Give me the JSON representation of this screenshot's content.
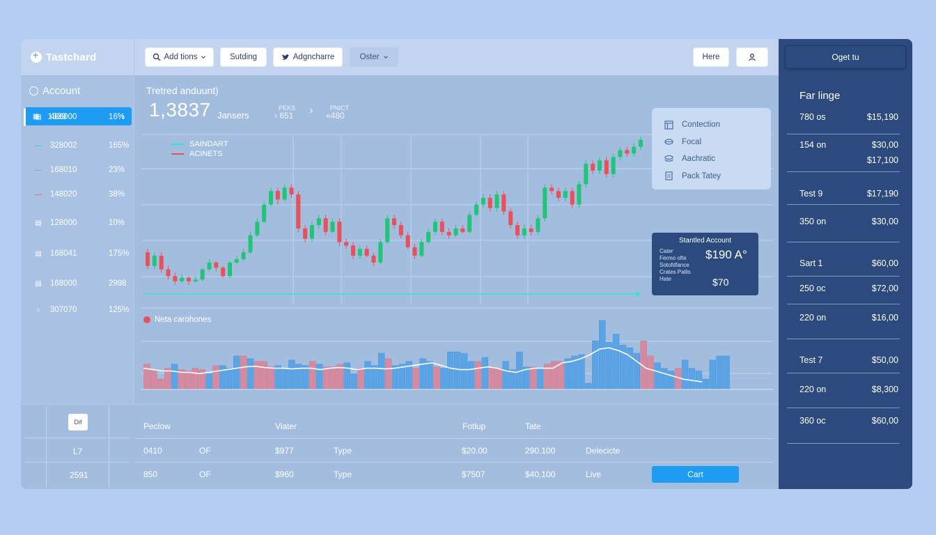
{
  "brand": {
    "name": "Tastchard"
  },
  "toolbar": {
    "add_tions": "Add tions",
    "sutding": "Sutding",
    "adgncharre": "Adgncharre",
    "oster": "Oster",
    "here": "Here",
    "user_icon": "user-icon",
    "oget_tu": "Oget tu"
  },
  "sidebar": {
    "title": "Account",
    "selected": {
      "value": "1339"
    },
    "items": [
      {
        "value": "486000",
        "pct": "16%"
      },
      {
        "value": "328002",
        "pct": "165%"
      },
      {
        "value": "168010",
        "pct": "23%"
      },
      {
        "value": "148020",
        "pct": "38%"
      },
      {
        "value": "128000",
        "pct": "10%"
      },
      {
        "value": "168041",
        "pct": "175%"
      },
      {
        "value": "168000",
        "pct": "2998"
      },
      {
        "value": "307070",
        "pct": "125%"
      }
    ],
    "colors": [
      "#ffffff",
      "#22d07f",
      "#22d07f",
      "#e8505b"
    ]
  },
  "main": {
    "title": "Tretred anduunt)",
    "big_value": "1,3837",
    "big_suffix": "Jansers",
    "stat1": {
      "label": "PEKS",
      "value": "› 651"
    },
    "stat2": {
      "label": "PNICT",
      "value": "«480"
    },
    "legend": {
      "line1": "SAINDART",
      "line2": "ACINETS"
    },
    "volume_label": "Neta carohones"
  },
  "context_menu": {
    "items": [
      "Contection",
      "Focal",
      "Aachratic",
      "Pack Tatey"
    ]
  },
  "standard_account": {
    "title": "Stantled Account",
    "labels": [
      "Cater",
      "Fermo ofte",
      "Sotofdfance",
      "Crates Pallis",
      "Hate"
    ],
    "value_a": "$190 A°",
    "value_b": "$70"
  },
  "table": {
    "left": {
      "badge": "Dif",
      "row1": "L7",
      "row2": "2591"
    },
    "headers": [
      "Peclow",
      "Viater",
      "Fotlup",
      "Tate"
    ],
    "rows": [
      [
        "0410",
        "OF",
        "$977",
        "Type",
        "$20.00",
        "290.100",
        "Delecicte"
      ],
      [
        "850",
        "OF",
        "$960",
        "Type",
        "$7507",
        "$40,100",
        "Live"
      ]
    ],
    "cart_button": "Cart"
  },
  "right_panel": {
    "button": "Oget tu",
    "heading": "Far linge",
    "rows": [
      {
        "label": "780 os",
        "value": "$15,190"
      },
      {
        "label": "154 on",
        "value": "$30,00"
      },
      {
        "label": "",
        "value": "$17,100"
      },
      {
        "label": "Test 9",
        "value": "$17,190"
      },
      {
        "label": "350 on",
        "value": "$30,00"
      },
      {
        "label": "Sart 1",
        "value": "$60,00"
      },
      {
        "label": "250 oc",
        "value": "$72,00"
      },
      {
        "label": "220 on",
        "value": "$16,00"
      },
      {
        "label": "Test 7",
        "value": "$50,00"
      },
      {
        "label": "220 on",
        "value": "$8,300"
      },
      {
        "label": "360 oc",
        "value": "$60,00"
      }
    ]
  },
  "chart_data": [
    {
      "type": "candlestick",
      "up_color": "#22c47a",
      "down_color": "#e8505b",
      "baseline_color": "#2ee6d2",
      "series": [
        {
          "o": 72,
          "c": 64,
          "h": 74,
          "l": 62
        },
        {
          "o": 64,
          "c": 70,
          "h": 72,
          "l": 62
        },
        {
          "o": 70,
          "c": 62,
          "h": 72,
          "l": 60
        },
        {
          "o": 62,
          "c": 58,
          "h": 64,
          "l": 56
        },
        {
          "o": 58,
          "c": 55,
          "h": 60,
          "l": 53
        },
        {
          "o": 55,
          "c": 57,
          "h": 59,
          "l": 54
        },
        {
          "o": 57,
          "c": 55,
          "h": 58,
          "l": 53
        },
        {
          "o": 55,
          "c": 56,
          "h": 58,
          "l": 54
        },
        {
          "o": 56,
          "c": 62,
          "h": 63,
          "l": 55
        },
        {
          "o": 62,
          "c": 66,
          "h": 68,
          "l": 61
        },
        {
          "o": 66,
          "c": 63,
          "h": 67,
          "l": 61
        },
        {
          "o": 63,
          "c": 58,
          "h": 64,
          "l": 57
        },
        {
          "o": 58,
          "c": 66,
          "h": 67,
          "l": 57
        },
        {
          "o": 66,
          "c": 68,
          "h": 70,
          "l": 65
        },
        {
          "o": 68,
          "c": 72,
          "h": 74,
          "l": 67
        },
        {
          "o": 72,
          "c": 82,
          "h": 84,
          "l": 71
        },
        {
          "o": 82,
          "c": 90,
          "h": 92,
          "l": 81
        },
        {
          "o": 90,
          "c": 100,
          "h": 102,
          "l": 89
        },
        {
          "o": 100,
          "c": 108,
          "h": 110,
          "l": 99
        },
        {
          "o": 108,
          "c": 103,
          "h": 110,
          "l": 100
        },
        {
          "o": 103,
          "c": 110,
          "h": 112,
          "l": 102
        },
        {
          "o": 110,
          "c": 106,
          "h": 112,
          "l": 104
        },
        {
          "o": 106,
          "c": 86,
          "h": 108,
          "l": 84
        },
        {
          "o": 86,
          "c": 80,
          "h": 88,
          "l": 78
        },
        {
          "o": 80,
          "c": 88,
          "h": 90,
          "l": 78
        },
        {
          "o": 88,
          "c": 92,
          "h": 94,
          "l": 86
        },
        {
          "o": 92,
          "c": 84,
          "h": 94,
          "l": 82
        },
        {
          "o": 84,
          "c": 90,
          "h": 92,
          "l": 83
        },
        {
          "o": 90,
          "c": 78,
          "h": 92,
          "l": 76
        },
        {
          "o": 78,
          "c": 76,
          "h": 80,
          "l": 74
        },
        {
          "o": 76,
          "c": 70,
          "h": 78,
          "l": 68
        },
        {
          "o": 70,
          "c": 74,
          "h": 76,
          "l": 68
        },
        {
          "o": 74,
          "c": 70,
          "h": 76,
          "l": 69
        },
        {
          "o": 70,
          "c": 66,
          "h": 72,
          "l": 64
        },
        {
          "o": 66,
          "c": 78,
          "h": 80,
          "l": 65
        },
        {
          "o": 78,
          "c": 92,
          "h": 94,
          "l": 77
        },
        {
          "o": 92,
          "c": 88,
          "h": 94,
          "l": 86
        },
        {
          "o": 88,
          "c": 82,
          "h": 90,
          "l": 80
        },
        {
          "o": 82,
          "c": 75,
          "h": 84,
          "l": 74
        },
        {
          "o": 75,
          "c": 70,
          "h": 77,
          "l": 68
        },
        {
          "o": 70,
          "c": 78,
          "h": 80,
          "l": 69
        },
        {
          "o": 78,
          "c": 84,
          "h": 86,
          "l": 77
        },
        {
          "o": 84,
          "c": 90,
          "h": 92,
          "l": 82
        },
        {
          "o": 90,
          "c": 84,
          "h": 92,
          "l": 82
        },
        {
          "o": 84,
          "c": 82,
          "h": 86,
          "l": 80
        },
        {
          "o": 82,
          "c": 86,
          "h": 88,
          "l": 81
        },
        {
          "o": 86,
          "c": 84,
          "h": 88,
          "l": 83
        },
        {
          "o": 84,
          "c": 94,
          "h": 96,
          "l": 83
        },
        {
          "o": 94,
          "c": 100,
          "h": 102,
          "l": 93
        },
        {
          "o": 100,
          "c": 104,
          "h": 106,
          "l": 98
        },
        {
          "o": 104,
          "c": 98,
          "h": 106,
          "l": 96
        },
        {
          "o": 98,
          "c": 106,
          "h": 108,
          "l": 96
        },
        {
          "o": 106,
          "c": 96,
          "h": 108,
          "l": 94
        },
        {
          "o": 96,
          "c": 88,
          "h": 98,
          "l": 86
        },
        {
          "o": 88,
          "c": 82,
          "h": 90,
          "l": 80
        },
        {
          "o": 82,
          "c": 86,
          "h": 88,
          "l": 80
        },
        {
          "o": 86,
          "c": 84,
          "h": 88,
          "l": 82
        },
        {
          "o": 84,
          "c": 92,
          "h": 94,
          "l": 82
        },
        {
          "o": 92,
          "c": 110,
          "h": 112,
          "l": 90
        },
        {
          "o": 110,
          "c": 108,
          "h": 112,
          "l": 106
        },
        {
          "o": 108,
          "c": 104,
          "h": 110,
          "l": 102
        },
        {
          "o": 104,
          "c": 108,
          "h": 110,
          "l": 102
        },
        {
          "o": 108,
          "c": 100,
          "h": 110,
          "l": 98
        },
        {
          "o": 100,
          "c": 112,
          "h": 114,
          "l": 98
        },
        {
          "o": 112,
          "c": 124,
          "h": 126,
          "l": 110
        },
        {
          "o": 124,
          "c": 120,
          "h": 126,
          "l": 118
        },
        {
          "o": 120,
          "c": 126,
          "h": 128,
          "l": 118
        },
        {
          "o": 126,
          "c": 118,
          "h": 128,
          "l": 116
        },
        {
          "o": 118,
          "c": 128,
          "h": 130,
          "l": 116
        },
        {
          "o": 128,
          "c": 132,
          "h": 134,
          "l": 126
        },
        {
          "o": 132,
          "c": 130,
          "h": 134,
          "l": 128
        },
        {
          "o": 130,
          "c": 134,
          "h": 136,
          "l": 128
        },
        {
          "o": 134,
          "c": 138,
          "h": 140,
          "l": 132
        }
      ]
    },
    {
      "type": "bar",
      "values": [
        36,
        28,
        14,
        30,
        36,
        28,
        26,
        30,
        28,
        22,
        34,
        34,
        30,
        48,
        48,
        44,
        40,
        40,
        32,
        34,
        30,
        42,
        36,
        34,
        40,
        36,
        32,
        32,
        36,
        38,
        22,
        30,
        40,
        34,
        52,
        44,
        34,
        36,
        40,
        30,
        44,
        40,
        32,
        30,
        54,
        54,
        52,
        40,
        40,
        46,
        32,
        30,
        40,
        28,
        54,
        32,
        32,
        30,
        36,
        40,
        40,
        44,
        48,
        50,
        8,
        70,
        100,
        68,
        80,
        64,
        60,
        52,
        70,
        48,
        38,
        30,
        26,
        30,
        42,
        30,
        26,
        14,
        42,
        48,
        48
      ],
      "colors": [
        "r",
        "r",
        "r",
        "r",
        "b",
        "r",
        "r",
        "r",
        "r",
        "b",
        "r",
        "b",
        "b",
        "b",
        "r",
        "b",
        "r",
        "r",
        "r",
        "b",
        "b",
        "b",
        "b",
        "b",
        "r",
        "b",
        "r",
        "r",
        "r",
        "b",
        "b",
        "r",
        "b",
        "b",
        "b",
        "r",
        "b",
        "b",
        "b",
        "r",
        "b",
        "b",
        "r",
        "b",
        "b",
        "b",
        "b",
        "b",
        "r",
        "b",
        "r",
        "r",
        "b",
        "b",
        "b",
        "b",
        "r",
        "b",
        "r",
        "r",
        "r",
        "b",
        "b",
        "b",
        "b",
        "b",
        "b",
        "b",
        "b",
        "b",
        "b",
        "b",
        "r",
        "r",
        "b",
        "b",
        "b",
        "r",
        "b",
        "b",
        "b",
        "b",
        "b",
        "b",
        "b"
      ],
      "trend": [
        30,
        28,
        26,
        26,
        24,
        24,
        22,
        24,
        26,
        28,
        30,
        32,
        33,
        31,
        30,
        30,
        29,
        30,
        30,
        28,
        30,
        31,
        30,
        28,
        30,
        30,
        29,
        30,
        32,
        34,
        36,
        38,
        34,
        30,
        28,
        28,
        30,
        32,
        30,
        26,
        24,
        28,
        30,
        30,
        30,
        38,
        40,
        44,
        50,
        58,
        60,
        56,
        50,
        40,
        30,
        26,
        22,
        18,
        14,
        12,
        10
      ]
    }
  ]
}
